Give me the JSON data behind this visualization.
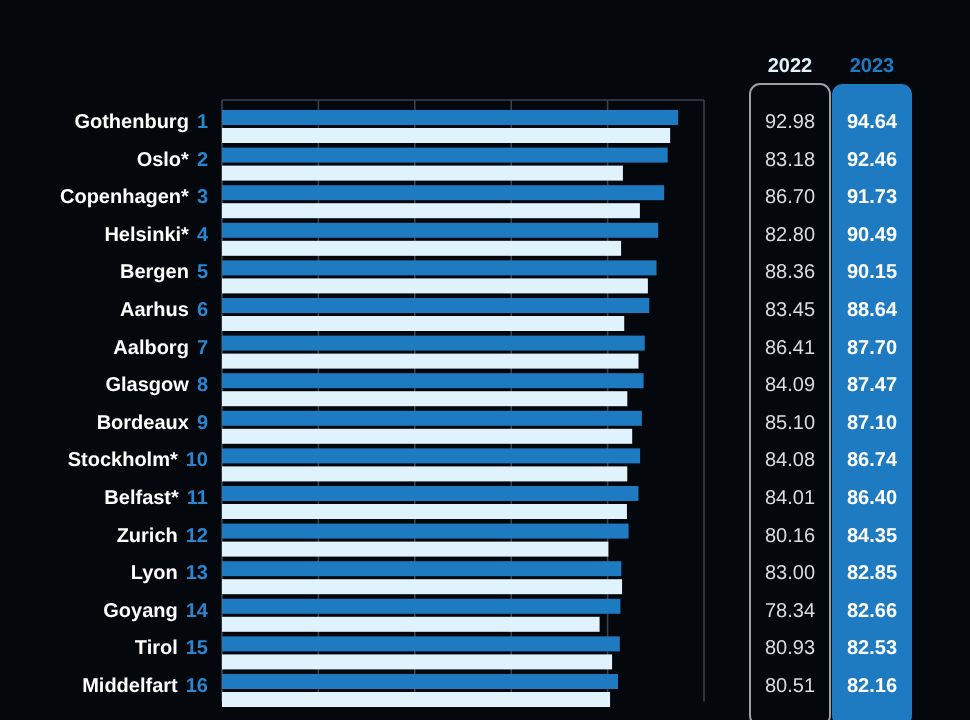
{
  "chart_data": {
    "type": "bar",
    "orientation": "horizontal",
    "categories": [
      "Gothenburg 1",
      "Oslo* 2",
      "Copenhagen* 3",
      "Helsinki* 4",
      "Bergen 5",
      "Aarhus 6",
      "Aalborg 7",
      "Glasgow 8",
      "Bordeaux 9",
      "Stockholm* 10",
      "Belfast* 11",
      "Zurich 12",
      "Lyon 13",
      "Goyang 14",
      "Tirol 15",
      "Middelfart 16"
    ],
    "series": [
      {
        "name": "2022",
        "color": "#e0f2fc",
        "values": [
          92.98,
          83.18,
          86.7,
          82.8,
          88.36,
          83.45,
          86.41,
          84.09,
          85.1,
          84.08,
          84.01,
          80.16,
          83.0,
          78.34,
          80.93,
          80.51
        ],
        "value_labels": [
          "92.98",
          "83.18",
          "86.70",
          "82.80",
          "88.36",
          "83.45",
          "86.41",
          "84.09",
          "85.10",
          "84.08",
          "84.01",
          "80.16",
          "83.00",
          "78.34",
          "80.93",
          "80.51"
        ]
      },
      {
        "name": "2023",
        "color": "#1f7bc1",
        "values": [
          94.64,
          92.46,
          91.73,
          90.49,
          90.15,
          88.64,
          87.7,
          87.47,
          87.1,
          86.74,
          86.4,
          84.35,
          82.85,
          82.66,
          82.53,
          82.16
        ],
        "value_labels": [
          "94.64",
          "92.46",
          "91.73",
          "90.49",
          "90.15",
          "88.64",
          "87.70",
          "87.47",
          "87.10",
          "86.74",
          "86.40",
          "84.35",
          "82.85",
          "82.66",
          "82.53",
          "82.16"
        ]
      }
    ],
    "xlim": [
      0,
      100
    ],
    "xticks": [
      {
        "value": 0,
        "label": null
      },
      {
        "value": 20,
        "label": null
      },
      {
        "value": 40,
        "label": null
      },
      {
        "value": 60,
        "label": null
      },
      {
        "value": 80,
        "label": null
      },
      {
        "value": 100,
        "label": null
      }
    ],
    "grid": "x"
  }
}
